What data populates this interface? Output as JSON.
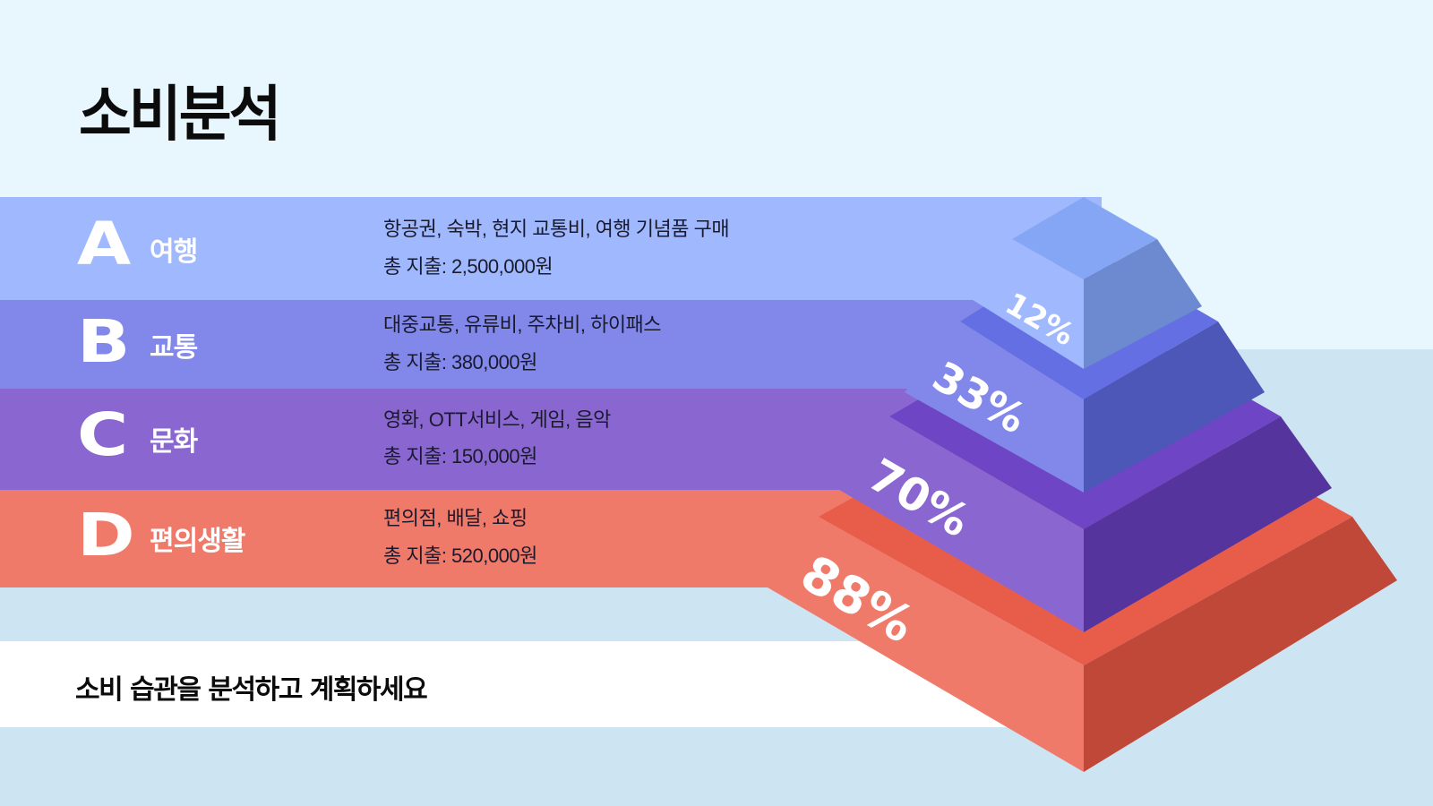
{
  "title": "소비분석",
  "categories": [
    {
      "letter": "A",
      "name": "여행",
      "description": "항공권, 숙박, 현지 교통비, 여행 기념품 구매",
      "total": "총 지출: 2,500,000원",
      "percent": "12%",
      "color": "#a0b8fd"
    },
    {
      "letter": "B",
      "name": "교통",
      "description": "대중교통, 유류비, 주차비, 하이패스",
      "total": "총 지출: 380,000원",
      "percent": "33%",
      "color": "#8188ea"
    },
    {
      "letter": "C",
      "name": "문화",
      "description": "영화, OTT서비스, 게임, 음악",
      "total": "총 지출: 150,000원",
      "percent": "70%",
      "color": "#8a67d0"
    },
    {
      "letter": "D",
      "name": "편의생활",
      "description": "편의점, 배달, 쇼핑",
      "total": "총 지출: 520,000원",
      "percent": "88%",
      "color": "#ef7a6a"
    }
  ],
  "tagline": "소비 습관을 분석하고 계획하세요"
}
